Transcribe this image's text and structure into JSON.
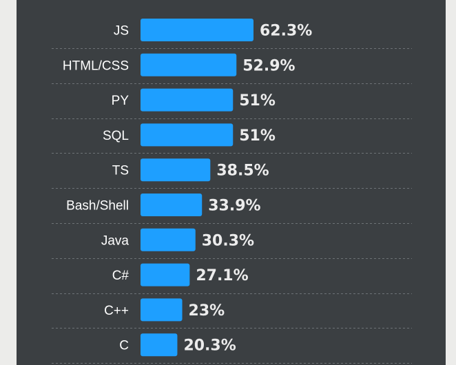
{
  "chart_data": {
    "type": "bar",
    "orientation": "horizontal",
    "categories": [
      "JS",
      "HTML/CSS",
      "PY",
      "SQL",
      "TS",
      "Bash/Shell",
      "Java",
      "C#",
      "C++",
      "C"
    ],
    "values": [
      62.3,
      52.9,
      51,
      51,
      38.5,
      33.9,
      30.3,
      27.1,
      23,
      20.3
    ],
    "value_labels": [
      "62.3%",
      "52.9%",
      "51%",
      "51%",
      "38.5%",
      "33.9%",
      "30.3%",
      "27.1%",
      "23%",
      "20.3%"
    ],
    "unit": "%",
    "xlim": [
      0,
      100
    ],
    "grid": false,
    "bar_color": "#1e9fff",
    "background_color": "#3b3f42"
  }
}
